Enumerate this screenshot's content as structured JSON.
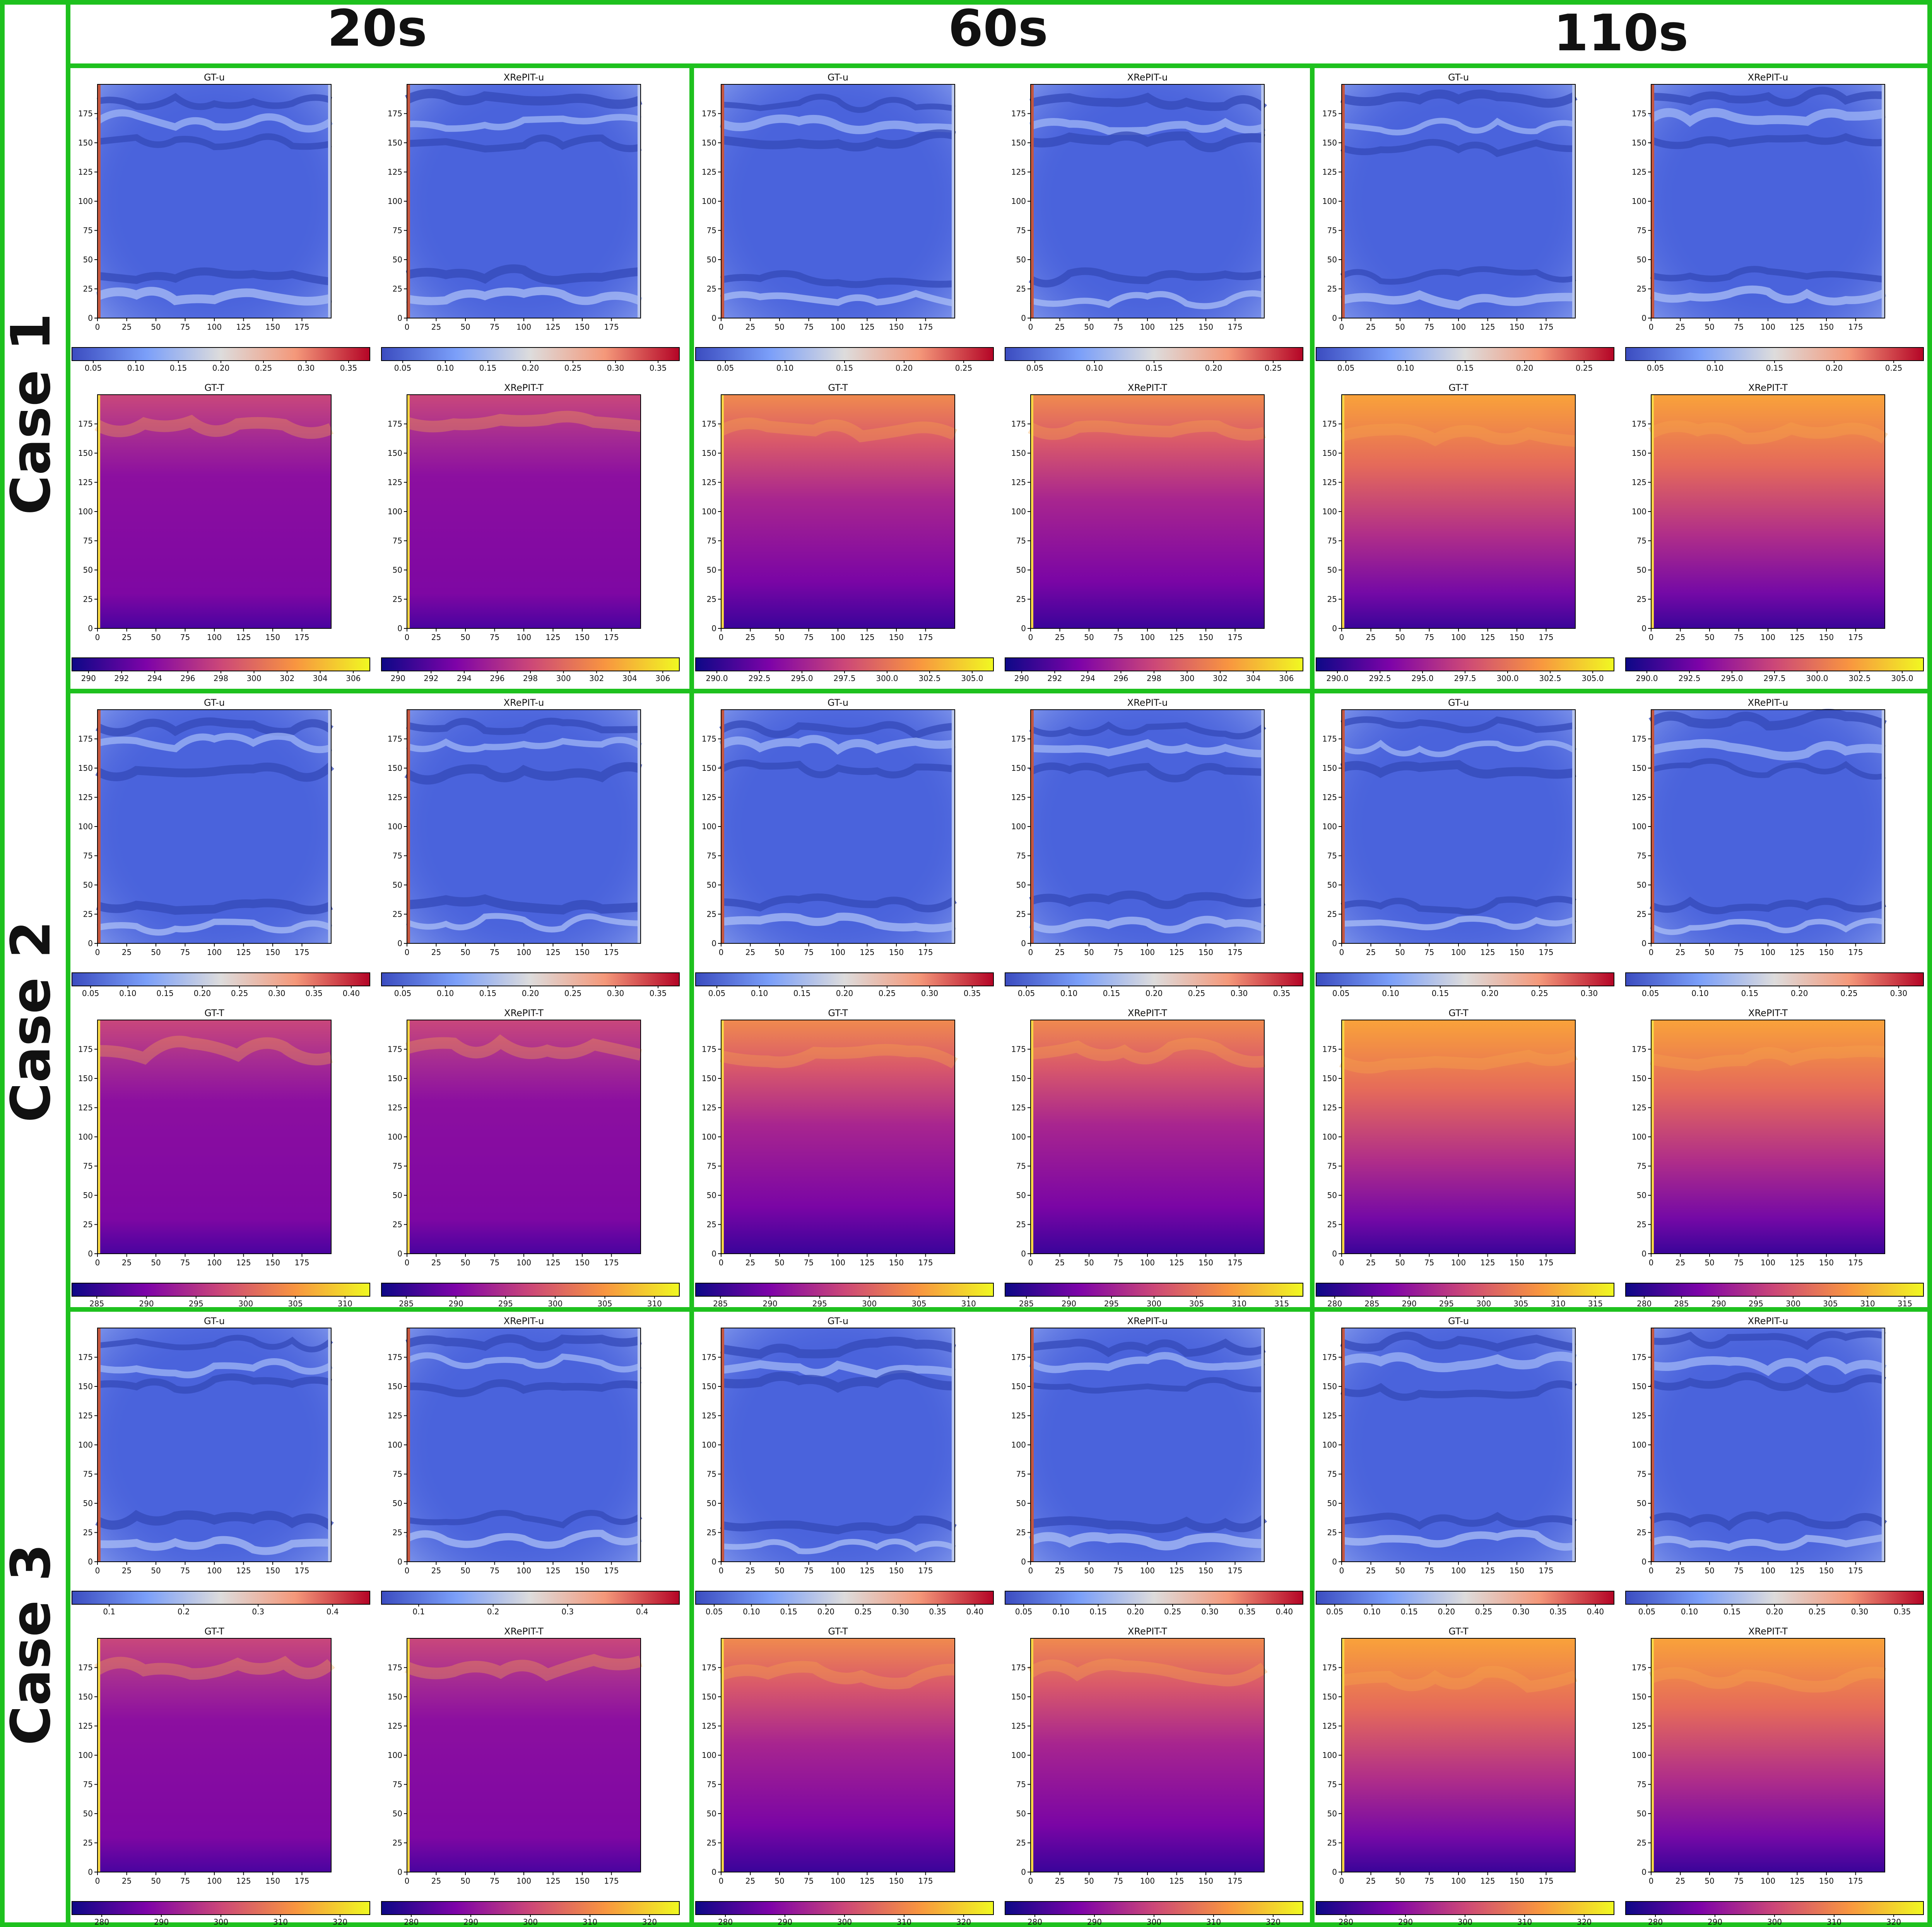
{
  "columns": [
    "20s",
    "60s",
    "110s"
  ],
  "rows": [
    "Case 1",
    "Case  2",
    "Case  3"
  ],
  "axis_ticks": [
    "0",
    "25",
    "50",
    "75",
    "100",
    "125",
    "150",
    "175"
  ],
  "panel_titles": {
    "gt_u": "GT-u",
    "x_u": "XRePIT-u",
    "gt_t": "GT-T",
    "x_t": "XRePIT-T"
  },
  "colors": {
    "frame": "#1ec11e",
    "cool": "#3b4cc0",
    "warm": "#b40426",
    "plasma_dark": "#0d0887",
    "plasma_bright": "#f0f921"
  },
  "colorbars": [
    [
      {
        "u": [
          "0.05",
          "0.10",
          "0.15",
          "0.20",
          "0.25",
          "0.30",
          "0.35"
        ],
        "u2": [
          "0.05",
          "0.10",
          "0.15",
          "0.20",
          "0.25",
          "0.30",
          "0.35"
        ],
        "t": [
          "290",
          "292",
          "294",
          "296",
          "298",
          "300",
          "302",
          "304",
          "306"
        ],
        "t2": [
          "290",
          "292",
          "294",
          "296",
          "298",
          "300",
          "302",
          "304",
          "306"
        ]
      },
      {
        "u": [
          "0.05",
          "0.10",
          "0.15",
          "0.20",
          "0.25"
        ],
        "u2": [
          "0.05",
          "0.10",
          "0.15",
          "0.20",
          "0.25"
        ],
        "t": [
          "290.0",
          "292.5",
          "295.0",
          "297.5",
          "300.0",
          "302.5",
          "305.0"
        ],
        "t2": [
          "290",
          "292",
          "294",
          "296",
          "298",
          "300",
          "302",
          "304",
          "306"
        ]
      },
      {
        "u": [
          "0.05",
          "0.10",
          "0.15",
          "0.20",
          "0.25"
        ],
        "u2": [
          "0.05",
          "0.10",
          "0.15",
          "0.20",
          "0.25"
        ],
        "t": [
          "290.0",
          "292.5",
          "295.0",
          "297.5",
          "300.0",
          "302.5",
          "305.0"
        ],
        "t2": [
          "290.0",
          "292.5",
          "295.0",
          "297.5",
          "300.0",
          "302.5",
          "305.0"
        ]
      }
    ],
    [
      {
        "u": [
          "0.05",
          "0.10",
          "0.15",
          "0.20",
          "0.25",
          "0.30",
          "0.35",
          "0.40"
        ],
        "u2": [
          "0.05",
          "0.10",
          "0.15",
          "0.20",
          "0.25",
          "0.30",
          "0.35"
        ],
        "t": [
          "285",
          "290",
          "295",
          "300",
          "305",
          "310"
        ],
        "t2": [
          "285",
          "290",
          "295",
          "300",
          "305",
          "310"
        ]
      },
      {
        "u": [
          "0.05",
          "0.10",
          "0.15",
          "0.20",
          "0.25",
          "0.30",
          "0.35"
        ],
        "u2": [
          "0.05",
          "0.10",
          "0.15",
          "0.20",
          "0.25",
          "0.30",
          "0.35"
        ],
        "t": [
          "285",
          "290",
          "295",
          "300",
          "305",
          "310"
        ],
        "t2": [
          "285",
          "290",
          "295",
          "300",
          "305",
          "310",
          "315"
        ]
      },
      {
        "u": [
          "0.05",
          "0.10",
          "0.15",
          "0.20",
          "0.25",
          "0.30"
        ],
        "u2": [
          "0.05",
          "0.10",
          "0.15",
          "0.20",
          "0.25",
          "0.30"
        ],
        "t": [
          "280",
          "285",
          "290",
          "295",
          "300",
          "305",
          "310",
          "315"
        ],
        "t2": [
          "280",
          "285",
          "290",
          "295",
          "300",
          "305",
          "310",
          "315"
        ]
      }
    ],
    [
      {
        "u": [
          "0.1",
          "0.2",
          "0.3",
          "0.4"
        ],
        "u2": [
          "0.1",
          "0.2",
          "0.3",
          "0.4"
        ],
        "t": [
          "280",
          "290",
          "300",
          "310",
          "320"
        ],
        "t2": [
          "280",
          "290",
          "300",
          "310",
          "320"
        ]
      },
      {
        "u": [
          "0.05",
          "0.10",
          "0.15",
          "0.20",
          "0.25",
          "0.30",
          "0.35",
          "0.40"
        ],
        "u2": [
          "0.05",
          "0.10",
          "0.15",
          "0.20",
          "0.25",
          "0.30",
          "0.35",
          "0.40"
        ],
        "t": [
          "280",
          "290",
          "300",
          "310",
          "320"
        ],
        "t2": [
          "280",
          "290",
          "300",
          "310",
          "320"
        ]
      },
      {
        "u": [
          "0.05",
          "0.10",
          "0.15",
          "0.20",
          "0.25",
          "0.30",
          "0.35",
          "0.40"
        ],
        "u2": [
          "0.05",
          "0.10",
          "0.15",
          "0.20",
          "0.25",
          "0.30",
          "0.35"
        ],
        "t": [
          "280",
          "290",
          "300",
          "310",
          "320"
        ],
        "t2": [
          "280",
          "290",
          "300",
          "310",
          "320"
        ]
      }
    ]
  ]
}
